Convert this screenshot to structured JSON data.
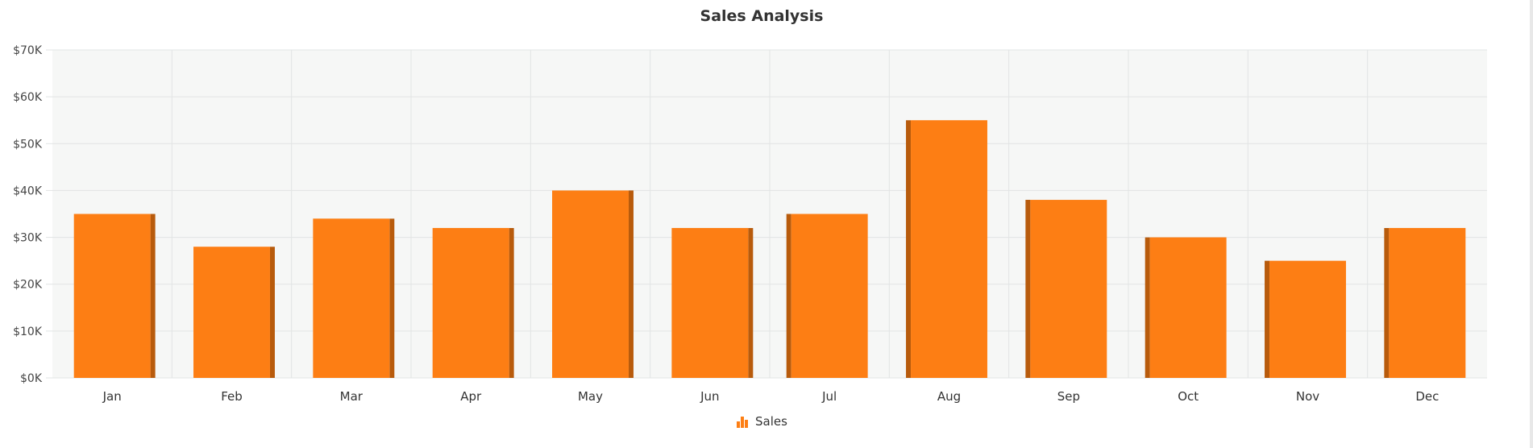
{
  "chart_data": {
    "type": "bar",
    "title": "Sales Analysis",
    "categories": [
      "Jan",
      "Feb",
      "Mar",
      "Apr",
      "May",
      "Jun",
      "Jul",
      "Aug",
      "Sep",
      "Oct",
      "Nov",
      "Dec"
    ],
    "series": [
      {
        "name": "Sales",
        "values": [
          35000,
          28000,
          34000,
          32000,
          40000,
          32000,
          35000,
          55000,
          38000,
          30000,
          25000,
          32000
        ]
      }
    ],
    "ylim": [
      0,
      70000
    ],
    "yticks": [
      "$0K",
      "$10K",
      "$20K",
      "$30K",
      "$40K",
      "$50K",
      "$60K",
      "$70K"
    ],
    "grid": true,
    "legend_position": "bottom",
    "colors": {
      "bar": "#FD7E14",
      "bar_side": "#B85B0C",
      "plot_bg": "#F6F7F6",
      "grid": "#E2E4E4"
    }
  },
  "legend": {
    "label": "Sales",
    "icon": "bar-chart-icon"
  }
}
